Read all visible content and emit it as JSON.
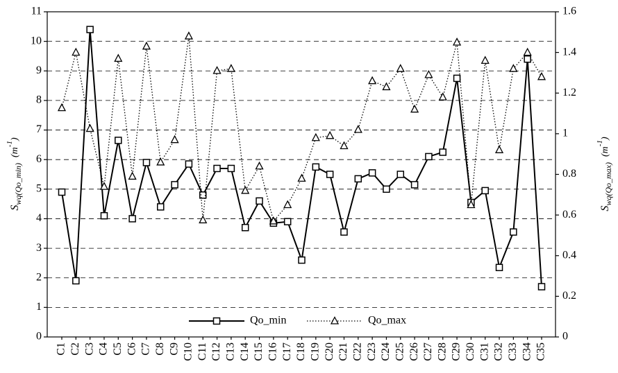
{
  "chart_data": {
    "type": "line",
    "categories": [
      "C1",
      "C2",
      "C3",
      "C4",
      "C5",
      "C6",
      "C7",
      "C8",
      "C9",
      "C10",
      "C11",
      "C12",
      "C13",
      "C14",
      "C15",
      "C16",
      "C17",
      "C18",
      "C19",
      "C20",
      "C21",
      "C22",
      "C23",
      "C24",
      "C25",
      "C26",
      "C27",
      "C28",
      "C29",
      "C30",
      "C31",
      "C32",
      "C33",
      "C34",
      "C35"
    ],
    "y_label": {
      "symbol": "S",
      "subscript": "wq(Qo_min)",
      "unit": "(m",
      "exponent": "-1",
      "close": ")"
    },
    "y2_label": {
      "symbol": "S",
      "subscript": "wq(Qo_max)",
      "unit": "(m",
      "exponent": "-1",
      "close": ")"
    },
    "ylim": [
      0,
      11
    ],
    "yticks": [
      0,
      1,
      2,
      3,
      4,
      5,
      6,
      7,
      8,
      9,
      10,
      11
    ],
    "y2lim": [
      0,
      1.6
    ],
    "y2ticks": [
      0,
      0.2,
      0.4,
      0.6,
      0.8,
      1,
      1.2,
      1.4,
      1.6
    ],
    "grid": true,
    "legend": "lower center",
    "series": [
      {
        "name": "Qo_min",
        "color": "#000000",
        "marker": "square",
        "line": "solid",
        "values": [
          4.9,
          1.9,
          10.4,
          4.1,
          6.65,
          4.0,
          5.9,
          4.4,
          5.15,
          5.85,
          4.8,
          5.7,
          5.7,
          3.7,
          4.6,
          3.85,
          3.9,
          2.6,
          5.75,
          5.5,
          3.55,
          5.35,
          5.55,
          5.0,
          5.5,
          5.15,
          6.1,
          6.25,
          8.75,
          4.55,
          4.95,
          2.35,
          3.55,
          9.4,
          1.7
        ]
      },
      {
        "name": "Qo_max",
        "color": "#000000",
        "marker": "triangle",
        "line": "dotted",
        "axis": "y2",
        "values": [
          1.127,
          1.4,
          1.025,
          0.74,
          1.37,
          0.79,
          1.43,
          0.86,
          0.97,
          1.48,
          0.575,
          1.31,
          1.32,
          0.72,
          0.84,
          0.57,
          0.65,
          0.78,
          0.98,
          0.99,
          0.94,
          1.02,
          1.26,
          1.23,
          1.32,
          1.12,
          1.29,
          1.18,
          1.45,
          0.65,
          1.36,
          0.92,
          1.32,
          1.4,
          1.28
        ]
      }
    ]
  }
}
